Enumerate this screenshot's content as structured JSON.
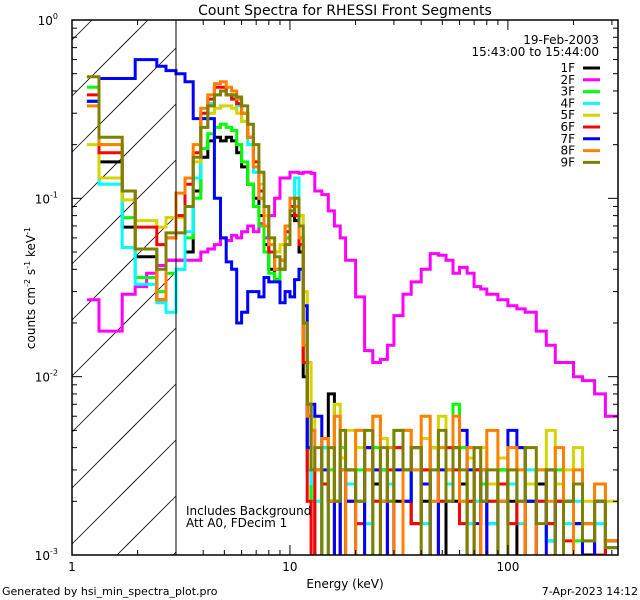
{
  "chart_data": {
    "type": "line",
    "subtype": "histogram-step",
    "title": "Count Spectra for RHESSI Front Segments",
    "xlabel": "Energy (keV)",
    "ylabel_parts": {
      "base": "counts cm",
      "e1": "-2",
      "mid": " s",
      "e2": "-1",
      "mid2": " keV",
      "e3": "-1"
    },
    "xscale": "log",
    "yscale": "log",
    "xlim": [
      1,
      320
    ],
    "ylim": [
      0.001,
      1
    ],
    "xtick_labels": [
      {
        "value": 1,
        "label": "1"
      },
      {
        "value": 10,
        "label": "10"
      },
      {
        "value": 100,
        "label": "100"
      }
    ],
    "ytick_labels": [
      {
        "value": 0.001,
        "base": "10",
        "exp": "-3"
      },
      {
        "value": 0.01,
        "base": "10",
        "exp": "-2"
      },
      {
        "value": 0.1,
        "base": "10",
        "exp": "-1"
      },
      {
        "value": 1,
        "base": "10",
        "exp": "0"
      }
    ],
    "attenuator_hatch_max_kev": 3,
    "date": "19-Feb-2003",
    "time_range": "15:43:00 to 15:44:00",
    "annotations": [
      "Includes Background",
      "Att A0, FDecim 1"
    ],
    "legend_position": "top-right",
    "energy_edges": [
      1.17,
      1.33,
      1.5,
      1.7,
      1.95,
      2.2,
      2.45,
      2.7,
      3.0,
      3.3,
      3.6,
      3.9,
      4.2,
      4.5,
      4.8,
      5.1,
      5.4,
      5.7,
      6.0,
      6.4,
      6.8,
      7.2,
      7.6,
      8.0,
      8.5,
      9.0,
      9.5,
      10,
      10.5,
      11,
      11.5,
      12,
      12.5,
      13,
      14,
      15,
      16,
      17,
      18,
      20,
      22,
      24,
      26,
      28,
      30,
      33,
      36,
      40,
      44,
      48,
      52,
      56,
      60,
      65,
      70,
      75,
      80,
      90,
      100,
      110,
      120,
      135,
      150,
      165,
      180,
      200,
      220,
      250,
      280,
      320
    ],
    "series": [
      {
        "name": "1F",
        "color": "#000000",
        "values": [
          0.35,
          0.16,
          0.16,
          0.069,
          0.047,
          0.047,
          0.027,
          0.045,
          0.045,
          0.05,
          0.11,
          0.17,
          0.21,
          0.22,
          0.21,
          0.22,
          0.21,
          0.18,
          0.15,
          0.12,
          0.1,
          0.08,
          0.055,
          0.04,
          0.035,
          0.04,
          0.06,
          0.08,
          0.075,
          0.05,
          0.01,
          0.003,
          0.002,
          0.0009,
          0.004,
          0.008,
          0.002,
          0.0009,
          0.003,
          0.002,
          0.004,
          0.0025,
          0.003,
          0.0009,
          0.002,
          0.003,
          0.0015,
          0.002,
          0.004,
          0.0009,
          0.003,
          0.002,
          0.0025,
          0.0009,
          0.003,
          0.002,
          0.0015,
          0.003,
          0.002,
          0.0009,
          0.002,
          0.0025,
          0.0012,
          0.002,
          0.0009,
          0.0015,
          0.001,
          0.0009,
          0.0011
        ]
      },
      {
        "name": "2F",
        "color": "#ff00ff",
        "values": [
          0.027,
          0.018,
          0.018,
          0.029,
          0.032,
          0.038,
          0.042,
          0.045,
          0.045,
          0.045,
          0.045,
          0.05,
          0.052,
          0.055,
          0.06,
          0.058,
          0.062,
          0.06,
          0.065,
          0.07,
          0.065,
          0.072,
          0.06,
          0.08,
          0.1,
          0.13,
          0.13,
          0.14,
          0.14,
          0.138,
          0.14,
          0.14,
          0.138,
          0.11,
          0.105,
          0.085,
          0.07,
          0.06,
          0.045,
          0.028,
          0.014,
          0.012,
          0.0125,
          0.015,
          0.022,
          0.029,
          0.034,
          0.04,
          0.049,
          0.048,
          0.045,
          0.038,
          0.041,
          0.038,
          0.032,
          0.031,
          0.029,
          0.027,
          0.025,
          0.024,
          0.023,
          0.018,
          0.015,
          0.012,
          0.012,
          0.01,
          0.0095,
          0.008,
          0.006
        ]
      },
      {
        "name": "3F",
        "color": "#00ff00",
        "values": [
          0.42,
          0.2,
          0.2,
          0.078,
          0.036,
          0.036,
          0.03,
          0.038,
          0.04,
          0.06,
          0.1,
          0.19,
          0.23,
          0.25,
          0.26,
          0.25,
          0.24,
          0.2,
          0.16,
          0.12,
          0.09,
          0.07,
          0.05,
          0.038,
          0.035,
          0.04,
          0.06,
          0.09,
          0.08,
          0.06,
          0.012,
          0.004,
          0.002,
          0.003,
          0.0009,
          0.003,
          0.002,
          0.004,
          0.002,
          0.003,
          0.0009,
          0.004,
          0.003,
          0.002,
          0.005,
          0.003,
          0.004,
          0.003,
          0.002,
          0.004,
          0.003,
          0.007,
          0.004,
          0.002,
          0.003,
          0.0025,
          0.002,
          0.003,
          0.0015,
          0.004,
          0.002,
          0.003,
          0.0015,
          0.003,
          0.002,
          0.0012,
          0.0015,
          0.002,
          0.0012
        ]
      },
      {
        "name": "4F",
        "color": "#00ffff",
        "values": [
          0.35,
          0.12,
          0.12,
          0.053,
          0.033,
          0.033,
          0.026,
          0.023,
          0.04,
          0.065,
          0.13,
          0.25,
          0.34,
          0.38,
          0.4,
          0.38,
          0.37,
          0.33,
          0.27,
          0.2,
          0.14,
          0.1,
          0.07,
          0.05,
          0.04,
          0.045,
          0.07,
          0.1,
          0.13,
          0.08,
          0.015,
          0.003,
          0.0025,
          0.002,
          0.004,
          0.0009,
          0.002,
          0.003,
          0.0025,
          0.002,
          0.0015,
          0.003,
          0.002,
          0.0025,
          0.004,
          0.002,
          0.003,
          0.0015,
          0.003,
          0.002,
          0.0025,
          0.003,
          0.002,
          0.0015,
          0.002,
          0.003,
          0.0015,
          0.002,
          0.0025,
          0.0015,
          0.003,
          0.002,
          0.0012,
          0.0025,
          0.0015,
          0.002,
          0.0012,
          0.0015,
          0.0011
        ]
      },
      {
        "name": "5F",
        "color": "#d4d400",
        "values": [
          0.2,
          0.13,
          0.13,
          0.098,
          0.075,
          0.075,
          0.069,
          0.078,
          0.078,
          0.09,
          0.16,
          0.28,
          0.3,
          0.32,
          0.33,
          0.33,
          0.32,
          0.3,
          0.27,
          0.22,
          0.16,
          0.12,
          0.08,
          0.06,
          0.05,
          0.055,
          0.07,
          0.09,
          0.1,
          0.08,
          0.03,
          0.012,
          0.005,
          0.006,
          0.0045,
          0.004,
          0.007,
          0.0035,
          0.005,
          0.004,
          0.003,
          0.006,
          0.0045,
          0.003,
          0.004,
          0.005,
          0.003,
          0.0045,
          0.004,
          0.006,
          0.003,
          0.004,
          0.005,
          0.0035,
          0.003,
          0.004,
          0.0025,
          0.0035,
          0.003,
          0.004,
          0.0025,
          0.003,
          0.005,
          0.0025,
          0.003,
          0.004,
          0.002,
          0.0025,
          0.002
        ]
      },
      {
        "name": "6F",
        "color": "#ff0000",
        "values": [
          0.38,
          0.18,
          0.18,
          0.11,
          0.069,
          0.069,
          0.055,
          0.06,
          0.08,
          0.12,
          0.18,
          0.3,
          0.36,
          0.42,
          0.42,
          0.38,
          0.36,
          0.34,
          0.3,
          0.22,
          0.16,
          0.11,
          0.07,
          0.05,
          0.04,
          0.045,
          0.065,
          0.09,
          0.08,
          0.055,
          0.012,
          0.002,
          0.0009,
          0.003,
          0.0025,
          0.002,
          0.0009,
          0.003,
          0.002,
          0.0015,
          0.003,
          0.002,
          0.0009,
          0.003,
          0.004,
          0.002,
          0.0015,
          0.003,
          0.0009,
          0.002,
          0.004,
          0.003,
          0.0015,
          0.002,
          0.003,
          0.0009,
          0.002,
          0.0025,
          0.0015,
          0.002,
          0.0009,
          0.002,
          0.0015,
          0.002,
          0.0012,
          0.0009,
          0.0015,
          0.001,
          0.0012
        ]
      },
      {
        "name": "7F",
        "color": "#0000ff",
        "values": [
          0.35,
          0.47,
          0.47,
          0.47,
          0.6,
          0.6,
          0.55,
          0.52,
          0.5,
          0.45,
          0.28,
          0.28,
          0.28,
          0.1,
          0.06,
          0.044,
          0.04,
          0.02,
          0.023,
          0.03,
          0.03,
          0.028,
          0.036,
          0.034,
          0.034,
          0.026,
          0.03,
          0.028,
          0.035,
          0.04,
          0.025,
          0.004,
          0.007,
          0.006,
          0.003,
          0.002,
          0.0009,
          0.003,
          0.002,
          0.0008,
          0.004,
          0.003,
          0.002,
          0.0009,
          0.003,
          0.002,
          0.004,
          0.0025,
          0.0009,
          0.003,
          0.002,
          0.004,
          0.005,
          0.003,
          0.0015,
          0.003,
          0.0009,
          0.002,
          0.005,
          0.004,
          0.002,
          0.0008,
          0.003,
          0.0009,
          0.002,
          0.0015,
          0.0009,
          0.002,
          0.0012
        ]
      },
      {
        "name": "8F",
        "color": "#ff8000",
        "values": [
          0.33,
          0.2,
          0.2,
          0.11,
          0.052,
          0.052,
          0.027,
          0.06,
          0.107,
          0.13,
          0.2,
          0.32,
          0.38,
          0.44,
          0.45,
          0.42,
          0.4,
          0.36,
          0.3,
          0.22,
          0.15,
          0.1,
          0.07,
          0.055,
          0.04,
          0.045,
          0.07,
          0.1,
          0.09,
          0.06,
          0.015,
          0.006,
          0.005,
          0.003,
          0.0045,
          0.002,
          0.006,
          0.003,
          0.0009,
          0.005,
          0.003,
          0.006,
          0.002,
          0.004,
          0.0009,
          0.005,
          0.003,
          0.006,
          0.002,
          0.004,
          0.003,
          0.006,
          0.002,
          0.004,
          0.0009,
          0.003,
          0.005,
          0.002,
          0.004,
          0.003,
          0.0009,
          0.003,
          0.002,
          0.004,
          0.0009,
          0.003,
          0.0015,
          0.0025,
          0.0012
        ]
      },
      {
        "name": "9F",
        "color": "#808000",
        "values": [
          0.48,
          0.22,
          0.22,
          0.11,
          0.052,
          0.052,
          0.04,
          0.064,
          0.064,
          0.09,
          0.17,
          0.25,
          0.33,
          0.38,
          0.4,
          0.38,
          0.38,
          0.37,
          0.33,
          0.26,
          0.2,
          0.14,
          0.09,
          0.06,
          0.047,
          0.04,
          0.055,
          0.085,
          0.1,
          0.07,
          0.02,
          0.007,
          0.003,
          0.004,
          0.0009,
          0.004,
          0.002,
          0.005,
          0.003,
          0.002,
          0.005,
          0.0009,
          0.004,
          0.002,
          0.005,
          0.003,
          0.004,
          0.0009,
          0.003,
          0.005,
          0.002,
          0.004,
          0.003,
          0.0009,
          0.004,
          0.002,
          0.003,
          0.0009,
          0.003,
          0.002,
          0.004,
          0.0015,
          0.003,
          0.0009,
          0.002,
          0.0025,
          0.0012,
          0.002,
          0.0011
        ]
      }
    ]
  },
  "footer": {
    "generated_by": "Generated by hsi_min_spectra_plot.pro",
    "timestamp": "7-Apr-2023 14:12"
  }
}
